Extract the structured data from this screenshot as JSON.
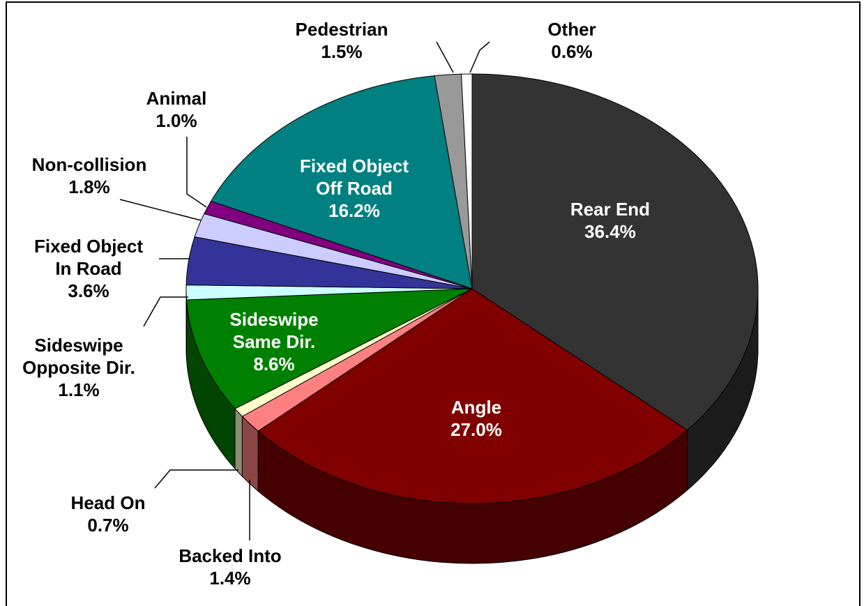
{
  "chart_data": {
    "type": "pie",
    "categories": [
      "Rear End",
      "Angle",
      "Backed Into",
      "Head On",
      "Sideswipe\nSame Dir.",
      "Sideswipe\nOpposite Dir.",
      "Fixed Object\nIn Road",
      "Non-collision",
      "Animal",
      "Fixed Object\nOff Road",
      "Pedestrian",
      "Other"
    ],
    "values": [
      36.4,
      27.0,
      1.4,
      0.7,
      8.6,
      1.1,
      3.6,
      1.8,
      1.0,
      16.2,
      1.5,
      0.6
    ],
    "value_labels": [
      "36.4%",
      "27.0%",
      "1.4%",
      "0.7%",
      "8.6%",
      "1.1%",
      "3.6%",
      "1.8%",
      "1.0%",
      "16.2%",
      "1.5%",
      "0.6%"
    ],
    "colors": [
      "#333333",
      "#800000",
      "#ff8080",
      "#ffffcc",
      "#008000",
      "#ccffff",
      "#333399",
      "#ccccff",
      "#800080",
      "#008080",
      "#999999",
      "#ffffff"
    ]
  }
}
